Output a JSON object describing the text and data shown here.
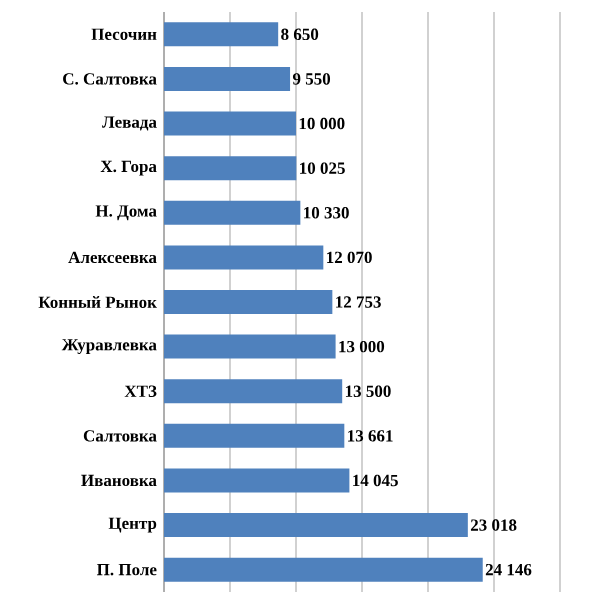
{
  "chart_data": {
    "type": "bar",
    "orientation": "horizontal",
    "categories": [
      "Песочин",
      "С. Салтовка",
      "Левада",
      "Х. Гора",
      "Н. Дома",
      "Алексеевка",
      "Конный Рынок",
      "Журавлевка",
      "ХТЗ",
      "Салтовка",
      "Ивановка",
      "Центр",
      "П. Поле"
    ],
    "values": [
      8650,
      9550,
      10000,
      10025,
      10330,
      12070,
      12753,
      13000,
      13500,
      13661,
      14045,
      23018,
      24146
    ],
    "value_labels": [
      "8 650",
      "9 550",
      "10 000",
      "10 025",
      "10 330",
      "12 070",
      "12 753",
      "13 000",
      "13 500",
      "13 661",
      "14 045",
      "23 018",
      "24 146"
    ],
    "color": "#4f81bd",
    "xlim": [
      0,
      30000
    ],
    "xticks": [
      {
        "value": 0,
        "label": null
      },
      {
        "value": 5000,
        "label": null
      },
      {
        "value": 10000,
        "label": null
      },
      {
        "value": 15000,
        "label": null
      },
      {
        "value": 20000,
        "label": null
      },
      {
        "value": 25000,
        "label": null
      },
      {
        "value": 30000,
        "label": null
      }
    ],
    "grid": "x",
    "tick_labels": "y"
  }
}
